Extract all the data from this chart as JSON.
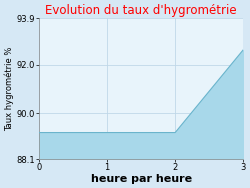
{
  "title": "Evolution du taux d'hygrométrie",
  "title_color": "#ff0000",
  "xlabel": "heure par heure",
  "ylabel": "Taux hygrométrie %",
  "x": [
    0,
    1,
    2,
    3
  ],
  "y": [
    89.2,
    89.2,
    89.2,
    92.6
  ],
  "ylim": [
    88.1,
    93.9
  ],
  "xlim": [
    0,
    3
  ],
  "yticks": [
    88.1,
    90.0,
    92.0,
    93.9
  ],
  "xticks": [
    0,
    1,
    2,
    3
  ],
  "fill_color": "#a8d8ea",
  "fill_alpha": 1.0,
  "line_color": "#6ab4cc",
  "line_width": 0.8,
  "bg_color": "#d6e8f5",
  "plot_bg_color": "#e8f4fb",
  "grid_color": "#c0d8e8",
  "title_fontsize": 8.5,
  "xlabel_fontsize": 8,
  "ylabel_fontsize": 6,
  "tick_fontsize": 6
}
